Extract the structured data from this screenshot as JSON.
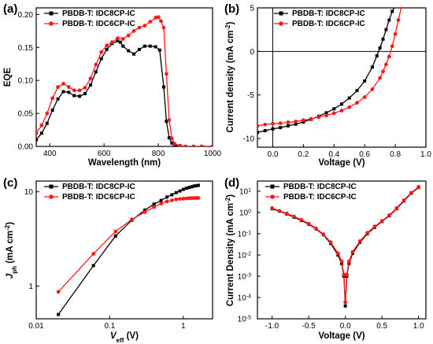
{
  "colors": {
    "series1": "#000000",
    "series2": "#ff1a1a"
  },
  "chart_data": [
    {
      "type": "line",
      "panel": "(a)",
      "xlabel": "Wavelength (nm)",
      "ylabel": "EQE",
      "xlim": [
        350,
        1000
      ],
      "ylim": [
        0.0,
        0.21
      ],
      "xticks": [
        400,
        600,
        800,
        1000
      ],
      "xticklabels": [
        "400",
        "600",
        "800",
        "1000"
      ],
      "yticks": [
        0.0,
        0.05,
        0.1,
        0.15,
        0.2
      ],
      "yticklabels": [
        "0.00",
        "0.05",
        "0.10",
        "0.15",
        "0.20"
      ],
      "legend": "top-left",
      "series": [
        {
          "name": "PBDB-T: IDC8CP-IC",
          "color": "#000000",
          "marker": "square",
          "x": [
            350,
            370,
            390,
            410,
            430,
            450,
            470,
            490,
            510,
            530,
            550,
            570,
            590,
            610,
            630,
            650,
            660,
            670,
            690,
            710,
            730,
            750,
            770,
            790,
            805,
            820,
            830,
            840,
            850,
            860,
            880,
            900,
            930,
            960,
            1000
          ],
          "y": [
            0.01,
            0.02,
            0.035,
            0.055,
            0.072,
            0.083,
            0.082,
            0.077,
            0.076,
            0.08,
            0.093,
            0.113,
            0.133,
            0.147,
            0.156,
            0.16,
            0.158,
            0.152,
            0.145,
            0.14,
            0.147,
            0.152,
            0.152,
            0.151,
            0.146,
            0.09,
            0.038,
            0.013,
            0.005,
            0.002,
            0.001,
            0.0,
            0.0,
            0.0,
            0.0
          ]
        },
        {
          "name": "PBDB-T: IDC6CP-IC",
          "color": "#ff1a1a",
          "marker": "circle",
          "x": [
            350,
            370,
            390,
            410,
            430,
            450,
            470,
            490,
            510,
            530,
            550,
            570,
            590,
            610,
            630,
            650,
            670,
            690,
            710,
            730,
            750,
            770,
            790,
            800,
            810,
            820,
            830,
            840,
            850,
            860,
            880,
            900,
            930,
            960,
            1000
          ],
          "y": [
            0.02,
            0.032,
            0.05,
            0.073,
            0.09,
            0.095,
            0.09,
            0.085,
            0.085,
            0.089,
            0.103,
            0.124,
            0.143,
            0.153,
            0.158,
            0.164,
            0.163,
            0.168,
            0.175,
            0.18,
            0.183,
            0.189,
            0.195,
            0.196,
            0.19,
            0.18,
            0.11,
            0.04,
            0.012,
            0.004,
            0.001,
            0.0,
            0.0,
            0.0,
            0.0
          ]
        }
      ]
    },
    {
      "type": "line",
      "panel": "(b)",
      "xlabel": "Voltage (V)",
      "ylabel": "Current density (mA cm⁻²)",
      "xlim": [
        -0.1,
        1.0
      ],
      "ylim": [
        -11,
        5
      ],
      "xticks": [
        0.0,
        0.2,
        0.4,
        0.6,
        0.8,
        1.0
      ],
      "xticklabels": [
        "0.0",
        "0.2",
        "0.4",
        "0.6",
        "0.8",
        "1.0"
      ],
      "yticks": [
        -10,
        -5,
        0,
        5
      ],
      "yticklabels": [
        "-10",
        "-5",
        "0",
        "5"
      ],
      "legend": "top-left",
      "series": [
        {
          "name": "PBDB-T: IDC8CP-IC",
          "color": "#000000",
          "marker": "square",
          "x": [
            -0.1,
            -0.05,
            0.0,
            0.05,
            0.1,
            0.15,
            0.2,
            0.25,
            0.3,
            0.35,
            0.4,
            0.45,
            0.5,
            0.55,
            0.6,
            0.65,
            0.68,
            0.7,
            0.72,
            0.74,
            0.76,
            0.78,
            0.8
          ],
          "y": [
            -9.3,
            -9.1,
            -8.9,
            -8.75,
            -8.55,
            -8.35,
            -8.1,
            -7.8,
            -7.45,
            -7.05,
            -6.6,
            -6.05,
            -5.35,
            -4.5,
            -3.4,
            -1.8,
            -0.5,
            0.4,
            1.4,
            2.5,
            3.6,
            4.6,
            5.2
          ]
        },
        {
          "name": "PBDB-T: IDC6CP-IC",
          "color": "#ff1a1a",
          "marker": "circle",
          "x": [
            -0.1,
            -0.05,
            0.0,
            0.05,
            0.1,
            0.15,
            0.2,
            0.25,
            0.3,
            0.35,
            0.4,
            0.45,
            0.5,
            0.55,
            0.6,
            0.65,
            0.7,
            0.72,
            0.74,
            0.76,
            0.78,
            0.8,
            0.82,
            0.84
          ],
          "y": [
            -8.55,
            -8.4,
            -8.3,
            -8.25,
            -8.15,
            -8.05,
            -7.9,
            -7.75,
            -7.55,
            -7.35,
            -7.1,
            -6.8,
            -6.4,
            -5.9,
            -5.25,
            -4.35,
            -3.05,
            -2.3,
            -1.5,
            -0.6,
            0.6,
            2.0,
            3.6,
            5.1
          ]
        }
      ]
    },
    {
      "type": "line",
      "panel": "(c)",
      "xlabel": "Veff (V)",
      "ylabel": "Jph (mA cm⁻²)",
      "xscale": "log",
      "yscale": "log",
      "xlim": [
        0.01,
        2.5
      ],
      "ylim": [
        0.45,
        13
      ],
      "xticks": [
        0.01,
        0.1,
        1
      ],
      "xticklabels": [
        "0.01",
        "0.1",
        "1"
      ],
      "yticks": [
        1,
        10
      ],
      "yticklabels": [
        "1",
        "10"
      ],
      "legend": "top-left",
      "series": [
        {
          "name": "PBDB-T: IDC8CP-IC",
          "color": "#000000",
          "marker": "square",
          "x": [
            0.02,
            0.06,
            0.12,
            0.2,
            0.3,
            0.4,
            0.5,
            0.6,
            0.7,
            0.8,
            0.9,
            1.0,
            1.1,
            1.2,
            1.3,
            1.4,
            1.5,
            1.6
          ],
          "y": [
            0.5,
            1.65,
            3.4,
            5.0,
            6.4,
            7.4,
            8.1,
            8.8,
            9.3,
            9.8,
            10.2,
            10.6,
            10.9,
            11.1,
            11.3,
            11.5,
            11.6,
            11.7
          ]
        },
        {
          "name": "PBDB-T: IDC6CP-IC",
          "color": "#ff1a1a",
          "marker": "circle",
          "x": [
            0.02,
            0.06,
            0.12,
            0.2,
            0.3,
            0.4,
            0.5,
            0.6,
            0.7,
            0.8,
            0.9,
            1.0,
            1.1,
            1.2,
            1.3,
            1.4,
            1.5,
            1.6
          ],
          "y": [
            0.87,
            2.2,
            3.8,
            5.1,
            6.1,
            6.9,
            7.5,
            7.9,
            8.1,
            8.3,
            8.4,
            8.45,
            8.5,
            8.55,
            8.55,
            8.6,
            8.6,
            8.6
          ]
        }
      ]
    },
    {
      "type": "line",
      "panel": "(d)",
      "xlabel": "Voltage (V)",
      "ylabel": "Current Density (mA cm⁻²)",
      "yscale": "log",
      "xlim": [
        -1.2,
        1.1
      ],
      "ylim": [
        1e-05,
        30
      ],
      "xticks": [
        -1.0,
        -0.5,
        0.0,
        0.5,
        1.0
      ],
      "xticklabels": [
        "-1.0",
        "-0.5",
        "0.0",
        "0.5",
        "1.0"
      ],
      "yticks": [
        1e-05,
        0.0001,
        0.001,
        0.01,
        0.1,
        1,
        10
      ],
      "ytickexp": [
        "-5",
        "-4",
        "-3",
        "-2",
        "-1",
        "0",
        "1"
      ],
      "legend": "top-left",
      "series": [
        {
          "name": "PBDB-T: IDC8CP-IC",
          "color": "#000000",
          "marker": "square",
          "x": [
            -1.0,
            -0.9,
            -0.8,
            -0.7,
            -0.6,
            -0.5,
            -0.4,
            -0.3,
            -0.2,
            -0.1,
            -0.05,
            -0.02,
            0.0,
            0.02,
            0.05,
            0.1,
            0.2,
            0.3,
            0.4,
            0.5,
            0.6,
            0.7,
            0.8,
            0.9,
            1.0
          ],
          "y": [
            1.5,
            1.15,
            0.85,
            0.6,
            0.42,
            0.28,
            0.17,
            0.09,
            0.035,
            0.01,
            0.004,
            0.001,
            4e-05,
            0.001,
            0.004,
            0.012,
            0.04,
            0.1,
            0.2,
            0.38,
            0.7,
            1.5,
            3.5,
            8.0,
            15.0
          ]
        },
        {
          "name": "PBDB-T: IDC6CP-IC",
          "color": "#ff1a1a",
          "marker": "circle",
          "x": [
            -1.0,
            -0.9,
            -0.8,
            -0.7,
            -0.6,
            -0.5,
            -0.4,
            -0.3,
            -0.2,
            -0.1,
            -0.05,
            -0.02,
            0.0,
            0.02,
            0.05,
            0.1,
            0.2,
            0.3,
            0.4,
            0.5,
            0.6,
            0.7,
            0.8,
            0.9,
            1.0
          ],
          "y": [
            1.6,
            1.2,
            0.9,
            0.65,
            0.45,
            0.3,
            0.18,
            0.095,
            0.04,
            0.012,
            0.005,
            0.0012,
            6e-05,
            0.0012,
            0.005,
            0.014,
            0.045,
            0.11,
            0.22,
            0.4,
            0.75,
            1.6,
            3.8,
            8.5,
            16.0
          ]
        }
      ]
    }
  ]
}
